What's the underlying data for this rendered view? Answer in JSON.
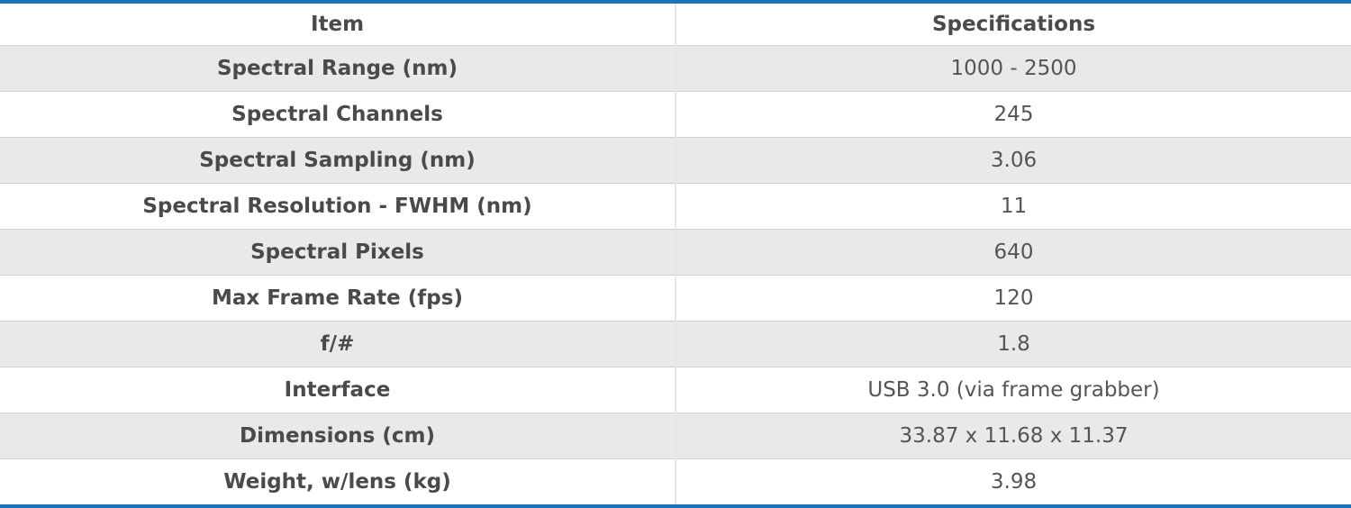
{
  "table": {
    "headers": {
      "item": "Item",
      "specifications": "Specifications"
    },
    "rows": [
      {
        "item": "Spectral Range (nm)",
        "spec": "1000 - 2500"
      },
      {
        "item": "Spectral Channels",
        "spec": "245"
      },
      {
        "item": "Spectral Sampling (nm)",
        "spec": "3.06"
      },
      {
        "item": "Spectral Resolution - FWHM (nm)",
        "spec": "11"
      },
      {
        "item": "Spectral Pixels",
        "spec": "640"
      },
      {
        "item": "Max Frame Rate (fps)",
        "spec": "120"
      },
      {
        "item": "f/#",
        "spec": "1.8"
      },
      {
        "item": "Interface",
        "spec": "USB 3.0 (via frame grabber)"
      },
      {
        "item": "Dimensions (cm)",
        "spec": "33.87 x 11.68 x 11.37"
      },
      {
        "item": "Weight, w/lens (kg)",
        "spec": "3.98"
      }
    ],
    "colors": {
      "accent_border": "#1b75bc",
      "row_shade": "#e9e9e9",
      "text": "#4a4a4a"
    }
  }
}
